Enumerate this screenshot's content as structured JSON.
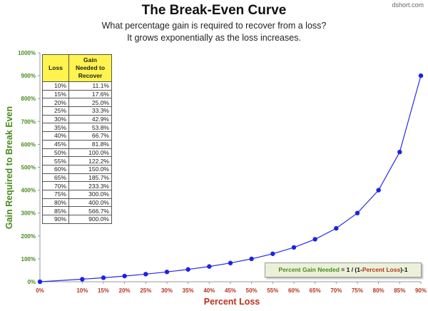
{
  "header": {
    "title": "The Break-Even Curve",
    "subtitle_line1": "What percentage gain is required to recover from a loss?",
    "subtitle_line2": "It grows exponentially as the loss increases.",
    "credit": "dshort.com"
  },
  "table": {
    "col1_header": "Loss",
    "col2_header_lines": [
      "Gain",
      "Needed to",
      "Recover"
    ],
    "rows": [
      {
        "loss": "10%",
        "gain": "11.1%"
      },
      {
        "loss": "15%",
        "gain": "17.6%"
      },
      {
        "loss": "20%",
        "gain": "25.0%"
      },
      {
        "loss": "25%",
        "gain": "33.3%"
      },
      {
        "loss": "30%",
        "gain": "42.9%"
      },
      {
        "loss": "35%",
        "gain": "53.8%"
      },
      {
        "loss": "40%",
        "gain": "66.7%"
      },
      {
        "loss": "45%",
        "gain": "81.8%"
      },
      {
        "loss": "50%",
        "gain": "100.0%"
      },
      {
        "loss": "55%",
        "gain": "122.2%"
      },
      {
        "loss": "60%",
        "gain": "150.0%"
      },
      {
        "loss": "65%",
        "gain": "185.7%"
      },
      {
        "loss": "70%",
        "gain": "233.3%"
      },
      {
        "loss": "75%",
        "gain": "300.0%"
      },
      {
        "loss": "80%",
        "gain": "400.0%"
      },
      {
        "loss": "85%",
        "gain": "566.7%"
      },
      {
        "loss": "90%",
        "gain": "900.0%"
      }
    ]
  },
  "formula": {
    "part1": "Percent Gain Needed",
    "part2": " = 1 / (1-",
    "part3": "Percent Loss",
    "part4": ")-1"
  },
  "colors": {
    "line": "#2a2ae8",
    "marker": "#1a22e6",
    "y_text": "#4a8a1c",
    "x_text": "#b8321c",
    "table_header": "#fff34d"
  },
  "chart_data": {
    "type": "line",
    "title": "The Break-Even Curve",
    "xlabel": "Percent Loss",
    "ylabel": "Gain Required to Break Even",
    "x": [
      0,
      10,
      15,
      20,
      25,
      30,
      35,
      40,
      45,
      50,
      55,
      60,
      65,
      70,
      75,
      80,
      85,
      90
    ],
    "x_tick_labels": [
      "0%",
      "10%",
      "15%",
      "20%",
      "25%",
      "30%",
      "35%",
      "40%",
      "45%",
      "50%",
      "55%",
      "60%",
      "65%",
      "70%",
      "75%",
      "80%",
      "85%",
      "90%"
    ],
    "y": [
      0,
      11.1,
      17.6,
      25.0,
      33.3,
      42.9,
      53.8,
      66.7,
      81.8,
      100.0,
      122.2,
      150.0,
      185.7,
      233.3,
      300.0,
      400.0,
      566.7,
      900.0
    ],
    "y_ticks": [
      0,
      100,
      200,
      300,
      400,
      500,
      600,
      700,
      800,
      900,
      1000
    ],
    "y_tick_labels": [
      "0%",
      "100%",
      "200%",
      "300%",
      "400%",
      "500%",
      "600%",
      "700%",
      "800%",
      "900%",
      "1000%"
    ],
    "ylim": [
      0,
      1000
    ],
    "grid": false,
    "legend": "none"
  }
}
